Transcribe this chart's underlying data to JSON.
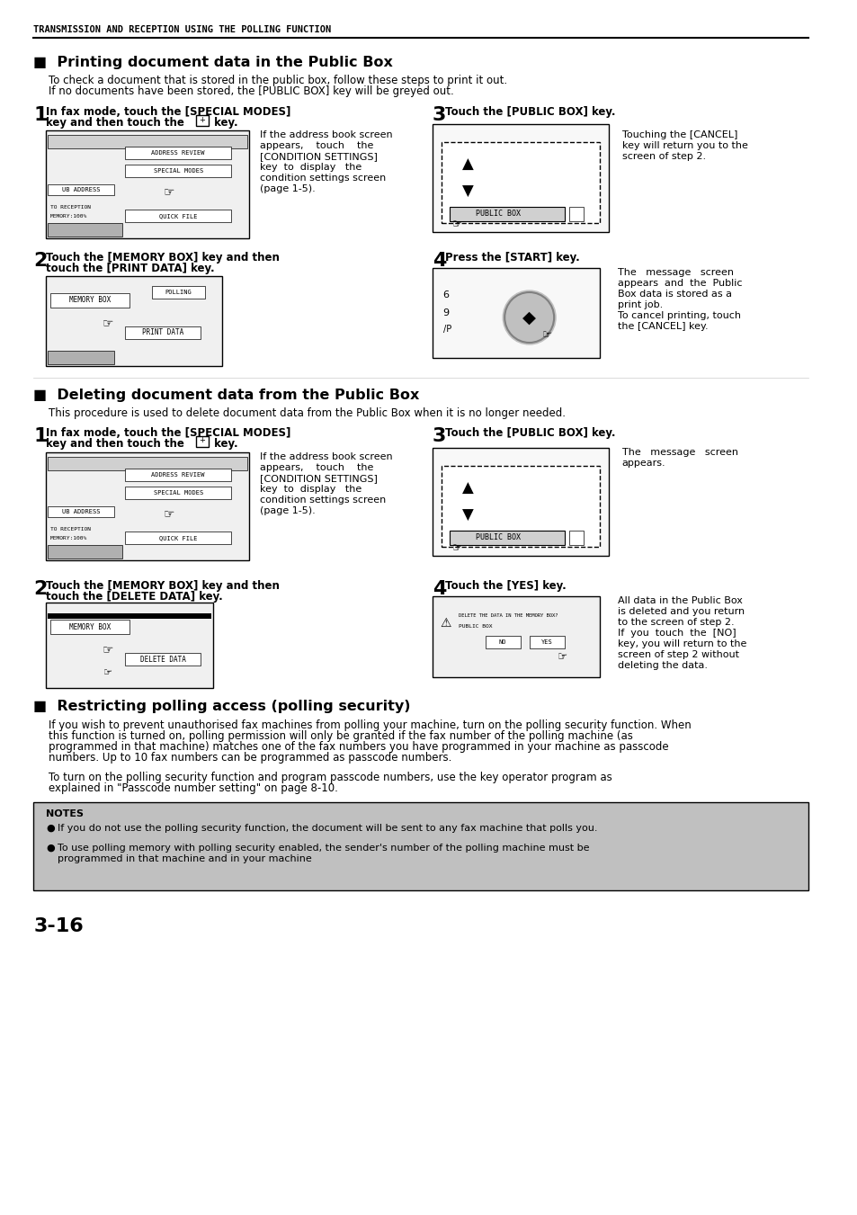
{
  "page_title": "TRANSMISSION AND RECEPTION USING THE POLLING FUNCTION",
  "section1_title": "■  Printing document data in the Public Box",
  "section1_intro": "To check a document that is stored in the public box, follow these steps to print it out.\nIf no documents have been stored, the [PUBLIC BOX] key will be greyed out.",
  "section2_title": "■  Deleting document data from the Public Box",
  "section2_intro": "This procedure is used to delete document data from the Public Box when it is no longer needed.",
  "section3_title": "■  Restricting polling access (polling security)",
  "section3_para1": "If you wish to prevent unauthorised fax machines from polling your machine, turn on the polling security function. When\nthis function is turned on, polling permission will only be granted if the fax number of the polling machine (as\nprogrammed in that machine) matches one of the fax numbers you have programmed in your machine as passcode\nnumbers. Up to 10 fax numbers can be programmed as passcode numbers.",
  "section3_para2": "To turn on the polling security function and program passcode numbers, use the key operator program as\nexplained in \"Passcode number setting\" on page 8-10.",
  "notes_title": "NOTES",
  "notes_bullet1": "If you do not use the polling security function, the document will be sent to any fax machine that polls you.",
  "notes_bullet2": "To use polling memory with polling security enabled, the sender's number of the polling machine must be\nprogrammed in that machine and in your machine",
  "page_number": "3-16",
  "bg_color": "#ffffff",
  "notes_bg": "#c8c8c8",
  "header_line_color": "#000000",
  "text_color": "#000000"
}
